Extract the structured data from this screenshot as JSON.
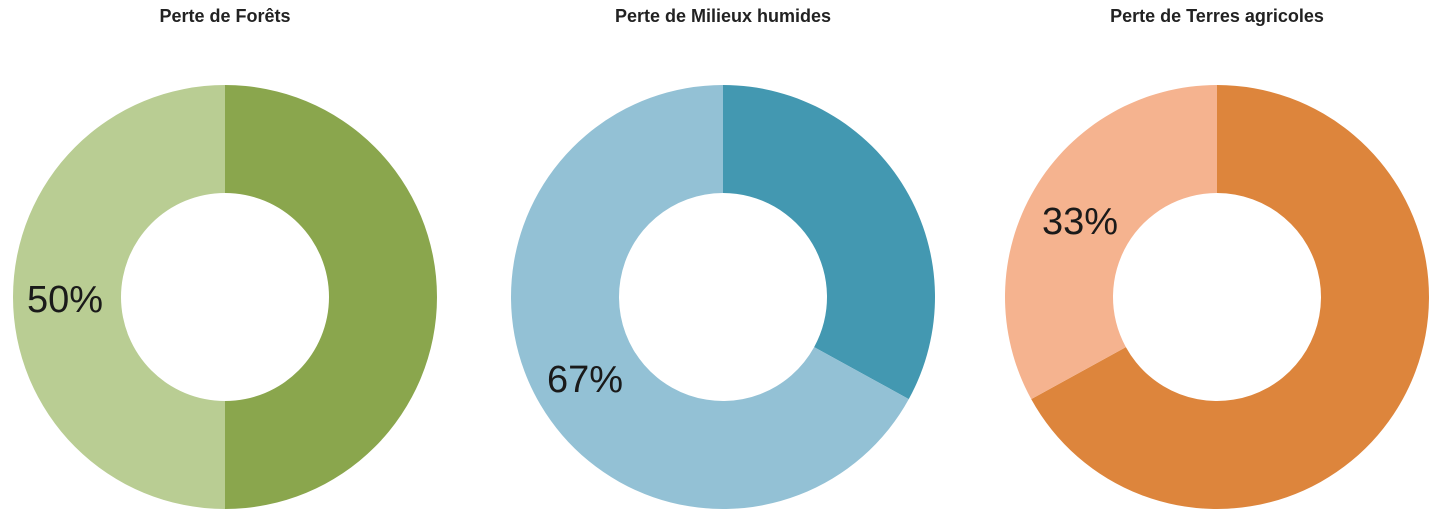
{
  "chart_data": [
    {
      "type": "pie",
      "title": "Perte de Forêts",
      "slices": [
        {
          "value": 50,
          "color": "#8aa64d"
        },
        {
          "value": 50,
          "color": "#b9cd93",
          "label": "50%"
        }
      ]
    },
    {
      "type": "pie",
      "title": "Perte de Milieux humides",
      "slices": [
        {
          "value": 33,
          "color": "#4398b1"
        },
        {
          "value": 67,
          "color": "#93c1d5",
          "label": "67%"
        }
      ]
    },
    {
      "type": "pie",
      "title": "Perte de Terres agricoles",
      "slices": [
        {
          "value": 67,
          "color": "#dd853c"
        },
        {
          "value": 33,
          "color": "#f5b38f",
          "label": "33%"
        }
      ]
    }
  ]
}
